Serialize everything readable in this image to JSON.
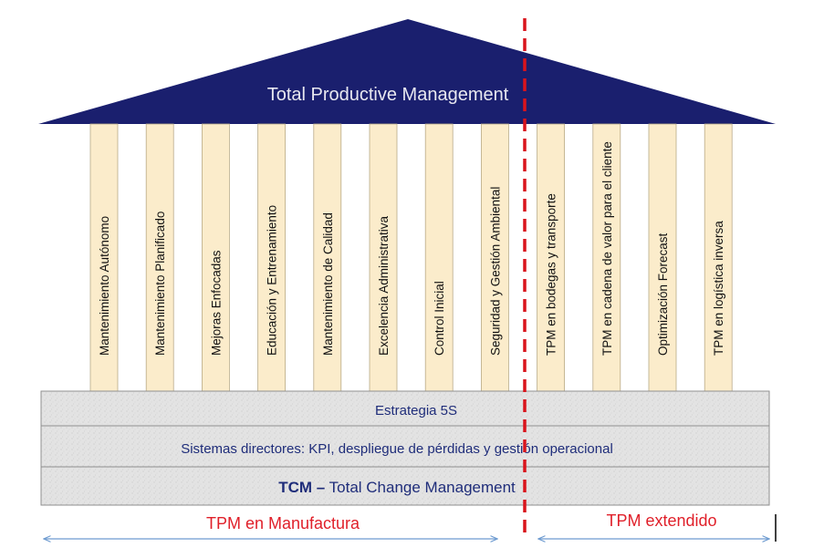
{
  "roof": {
    "title": "Total Productive Management",
    "fill": "#1a1f6e",
    "text_color": "#e8e8f0"
  },
  "pillars": [
    {
      "label": "Mantenimiento Autónomo"
    },
    {
      "label": "Mantenimiento Planificado"
    },
    {
      "label": "Mejoras Enfocadas"
    },
    {
      "label": "Educación y Entrenamiento"
    },
    {
      "label": "Mantenimiento de Calidad"
    },
    {
      "label": "Excelencia Administrativa"
    },
    {
      "label": "Control Inicial"
    },
    {
      "label": "Seguridad y Gestión Ambiental"
    },
    {
      "label": "TPM en bodegas y transporte"
    },
    {
      "label": "TPM en cadena de valor para el cliente"
    },
    {
      "label": "Optimización Forecast"
    },
    {
      "label": "TPM en logística inversa"
    }
  ],
  "pillar_colors": {
    "fill": "#fbeccb",
    "stroke": "#b9ab88",
    "text": "#111111"
  },
  "foundation": {
    "fill": "#e2e2e2",
    "rows": [
      {
        "text": "Estrategia 5S",
        "color": "#1f2d7a"
      },
      {
        "text": "Sistemas directores: KPI, despliegue de pérdidas y gestión operacional",
        "color": "#1f2d7a"
      },
      {
        "bold": "TCM –",
        "text": " Total Change Management",
        "color": "#1f2d7a"
      }
    ]
  },
  "divider_color": "#d9141c",
  "bottom": {
    "left_label": "TPM en Manufactura",
    "right_label": "TPM extendido",
    "label_color": "#e0202a",
    "arrow_color": "#6e9bd0"
  }
}
